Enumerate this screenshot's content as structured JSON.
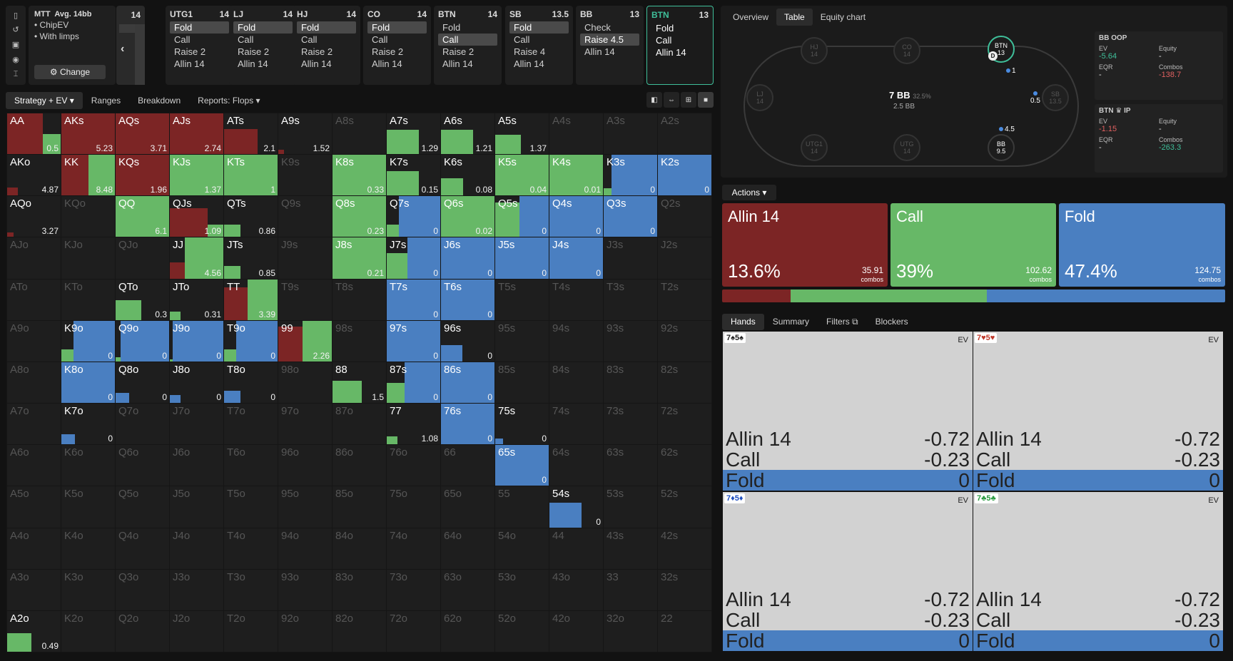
{
  "rail_icons": [
    "bookmark-icon",
    "history-icon",
    "save-icon",
    "gamepad-icon",
    "text-cursor-icon"
  ],
  "info": {
    "title": "MTT",
    "avg": "Avg. 14bb",
    "lines": [
      "• ChipEV",
      "• With limps"
    ],
    "change_label": "⚙ Change"
  },
  "nav": {
    "num": "14",
    "arrow": "‹"
  },
  "positions": [
    {
      "name": "UTG1",
      "stack": "14",
      "actions": [
        "Fold",
        "Call",
        "Raise 2",
        "Allin 14"
      ],
      "selected": 0
    },
    {
      "name": "LJ",
      "stack": "14",
      "actions": [
        "Fold",
        "Call",
        "Raise 2",
        "Allin 14"
      ],
      "selected": 0
    },
    {
      "name": "HJ",
      "stack": "14",
      "actions": [
        "Fold",
        "Call",
        "Raise 2",
        "Allin 14"
      ],
      "selected": 0
    },
    {
      "name": "CO",
      "stack": "14",
      "actions": [
        "Fold",
        "Call",
        "Raise 2",
        "Allin 14"
      ],
      "selected": 0
    },
    {
      "name": "BTN",
      "stack": "14",
      "actions": [
        "Fold",
        "Call",
        "Raise 2",
        "Allin 14"
      ],
      "selected": 1
    },
    {
      "name": "SB",
      "stack": "13.5",
      "actions": [
        "Fold",
        "Call",
        "Raise 4",
        "Allin 14"
      ],
      "selected": 0
    },
    {
      "name": "BB",
      "stack": "13",
      "actions": [
        "Check",
        "Raise 4.5",
        "Allin 14"
      ],
      "selected": 1
    },
    {
      "name": "BTN",
      "stack": "13",
      "actions": [
        "Fold",
        "Call",
        "Allin 14"
      ],
      "selected": -1
    }
  ],
  "toolbar": {
    "tabs": [
      "Strategy + EV ▾",
      "Ranges",
      "Breakdown",
      "Reports: Flops ▾"
    ],
    "icons": [
      "◧",
      "⇔",
      "⊞",
      "■"
    ]
  },
  "colors": {
    "allin": "#7c2525",
    "call": "#67b867",
    "fold": "#4a7fc1"
  },
  "grid": {
    "ranks": [
      "A",
      "K",
      "Q",
      "J",
      "T",
      "9",
      "8",
      "7",
      "6",
      "5",
      "4",
      "3",
      "2"
    ],
    "hands": {
      "AA": [
        0.5,
        [
          1,
          0.5,
          0
        ]
      ],
      "AKs": [
        5.23,
        [
          1,
          0,
          0
        ]
      ],
      "AQs": [
        3.71,
        [
          1,
          0,
          0
        ]
      ],
      "AJs": [
        2.74,
        [
          1,
          0,
          0
        ]
      ],
      "ATs": [
        2.1,
        [
          0.62,
          0,
          0
        ]
      ],
      "A9s": [
        1.52,
        [
          0.1,
          0,
          0
        ]
      ],
      "A7s": [
        1.29,
        [
          0,
          0.6,
          0
        ]
      ],
      "A6s": [
        1.21,
        [
          0,
          0.6,
          0
        ]
      ],
      "A5s": [
        1.37,
        [
          0,
          0.48,
          0
        ]
      ],
      "AKo": [
        4.87,
        [
          0.2,
          0,
          0
        ]
      ],
      "KK": [
        8.48,
        [
          1,
          1,
          0
        ]
      ],
      "KQs": [
        1.96,
        [
          1,
          0,
          0
        ]
      ],
      "KJs": [
        1.37,
        [
          0,
          1,
          0
        ]
      ],
      "KTs": [
        1,
        [
          0,
          1,
          0
        ]
      ],
      "K8s": [
        0.33,
        [
          0,
          1,
          0
        ]
      ],
      "K7s": [
        0.15,
        [
          0,
          0.6,
          0
        ]
      ],
      "K6s": [
        0.08,
        [
          0,
          0.42,
          0
        ]
      ],
      "K5s": [
        0.04,
        [
          0,
          1,
          0
        ]
      ],
      "K4s": [
        0.01,
        [
          0,
          1,
          0
        ]
      ],
      "K3s": [
        0,
        [
          0,
          0.18,
          1
        ]
      ],
      "K2s": [
        0,
        [
          0,
          0,
          1
        ]
      ],
      "AQo": [
        3.27,
        [
          0.12,
          0,
          0
        ]
      ],
      "QQ": [
        6.1,
        [
          0,
          1,
          0
        ]
      ],
      "QJs": [
        1.09,
        [
          0.7,
          0.3,
          0
        ]
      ],
      "QTs": [
        0.86,
        [
          0,
          0.3,
          0
        ]
      ],
      "Q8s": [
        0.23,
        [
          0,
          1,
          0
        ]
      ],
      "Q7s": [
        0,
        [
          0,
          0.3,
          1
        ]
      ],
      "Q6s": [
        0.02,
        [
          0,
          1,
          0
        ]
      ],
      "Q5s": [
        0,
        [
          0,
          0.85,
          1
        ]
      ],
      "Q4s": [
        0,
        [
          0,
          0,
          1
        ]
      ],
      "Q3s": [
        0,
        [
          0,
          0,
          1
        ]
      ],
      "JJ": [
        4.56,
        [
          0.4,
          1,
          0
        ]
      ],
      "JTs": [
        0.85,
        [
          0,
          0.3,
          0
        ]
      ],
      "J8s": [
        0.21,
        [
          0,
          1,
          0
        ]
      ],
      "J7s": [
        0,
        [
          0,
          0.62,
          1
        ]
      ],
      "J6s": [
        0,
        [
          0,
          0,
          1
        ]
      ],
      "J5s": [
        0,
        [
          0,
          0,
          1
        ]
      ],
      "J4s": [
        0,
        [
          0,
          0,
          1
        ]
      ],
      "QTo": [
        0.3,
        [
          0,
          0.48,
          0
        ]
      ],
      "JTo": [
        0.31,
        [
          0,
          0.2,
          0
        ]
      ],
      "TT": [
        3.39,
        [
          0.8,
          1,
          0
        ]
      ],
      "T7s": [
        0,
        [
          0,
          0,
          1
        ]
      ],
      "T6s": [
        0,
        [
          0,
          0,
          1
        ]
      ],
      "K9o": [
        0,
        [
          0,
          0.3,
          1
        ]
      ],
      "Q9o": [
        0,
        [
          0,
          0.1,
          1
        ]
      ],
      "J9o": [
        0,
        [
          0,
          0.05,
          1
        ]
      ],
      "T9o": [
        0,
        [
          0,
          0.3,
          1
        ]
      ],
      "99": [
        2.26,
        [
          0.85,
          1,
          0
        ]
      ],
      "97s": [
        0,
        [
          0,
          0,
          1
        ]
      ],
      "96s": [
        0,
        [
          0,
          0,
          0.4
        ]
      ],
      "K8o": [
        0,
        [
          0,
          0,
          1
        ]
      ],
      "Q8o": [
        0,
        [
          0,
          0,
          0.25
        ]
      ],
      "J8o": [
        0,
        [
          0,
          0,
          0.2
        ]
      ],
      "T8o": [
        0,
        [
          0,
          0,
          0.3
        ]
      ],
      "88": [
        1.5,
        [
          0,
          0.55,
          0
        ]
      ],
      "87s": [
        0,
        [
          0,
          0.5,
          1
        ]
      ],
      "86s": [
        0,
        [
          0,
          0,
          1
        ]
      ],
      "K7o": [
        0,
        [
          0,
          0,
          0.25
        ]
      ],
      "77": [
        1.08,
        [
          0,
          0.2,
          0
        ]
      ],
      "76s": [
        0,
        [
          0,
          0,
          1
        ]
      ],
      "75s": [
        0,
        [
          0,
          0,
          0.15
        ]
      ],
      "65s": [
        0,
        [
          0,
          0,
          1
        ]
      ],
      "54s": [
        0,
        [
          0,
          0,
          0.6
        ]
      ],
      "A2o": [
        0.49,
        [
          0,
          0.45,
          0
        ]
      ]
    }
  },
  "right": {
    "tabs": [
      "Overview",
      "Table",
      "Equity chart"
    ],
    "seats": [
      {
        "name": "HJ",
        "stack": "14",
        "on": false
      },
      {
        "name": "CO",
        "stack": "14",
        "on": false
      },
      {
        "name": "BTN",
        "stack": "13",
        "on": true
      },
      {
        "name": "LJ",
        "stack": "14",
        "on": false
      },
      {
        "name": "SB",
        "stack": "13.5",
        "on": false
      },
      {
        "name": "UTG1",
        "stack": "14",
        "on": false
      },
      {
        "name": "UTG",
        "stack": "14",
        "on": false
      },
      {
        "name": "BB",
        "stack": "9.5",
        "on": true
      }
    ],
    "pot": "7 BB",
    "pot_pct": "32.5%",
    "pot_sub": "2.5 BB",
    "chips": {
      "btn": "1",
      "sb": "0.5",
      "bb": "4.5"
    },
    "dealer": "D",
    "stats": [
      {
        "title": "BB OOP",
        "ev": "-5.64",
        "equity": "-",
        "eqr": "-",
        "combos": "-138.7",
        "ev_cls": "pos",
        "combos_cls": "neg"
      },
      {
        "title": "BTN ♛ IP",
        "ev": "-1.15",
        "equity": "-",
        "eqr": "-",
        "combos": "-263.3",
        "ev_cls": "neg",
        "combos_cls": "pos"
      }
    ],
    "stat_labels": {
      "ev": "EV",
      "equity": "Equity",
      "eqr": "EQR",
      "combos": "Combos"
    }
  },
  "actions": {
    "label": "Actions ▾",
    "boxes": [
      {
        "name": "Allin 14",
        "pct": "13.6%",
        "combos": "35.91",
        "freq": 0.136
      },
      {
        "name": "Call",
        "pct": "39%",
        "combos": "102.62",
        "freq": 0.39
      },
      {
        "name": "Fold",
        "pct": "47.4%",
        "combos": "124.75",
        "freq": 0.474
      }
    ],
    "combos_word": "combos"
  },
  "hands": {
    "tabs": [
      "Hands",
      "Summary",
      "Filters ⧉",
      "Blockers"
    ],
    "ev_label": "EV",
    "cards": [
      {
        "cards": "7♠5♠",
        "color": "#222",
        "rows": [
          [
            "Allin 14",
            "-0.72"
          ],
          [
            "Call",
            "-0.23"
          ],
          [
            "Fold",
            "0"
          ]
        ]
      },
      {
        "cards": "7♥5♥",
        "color": "#c0392b",
        "rows": [
          [
            "Allin 14",
            "-0.72"
          ],
          [
            "Call",
            "-0.23"
          ],
          [
            "Fold",
            "0"
          ]
        ]
      },
      {
        "cards": "7♦5♦",
        "color": "#2050c0",
        "rows": [
          [
            "Allin 14",
            "-0.72"
          ],
          [
            "Call",
            "-0.23"
          ],
          [
            "Fold",
            "0"
          ]
        ]
      },
      {
        "cards": "7♣5♣",
        "color": "#2a9a40",
        "rows": [
          [
            "Allin 14",
            "-0.72"
          ],
          [
            "Call",
            "-0.23"
          ],
          [
            "Fold",
            "0"
          ]
        ]
      }
    ]
  }
}
